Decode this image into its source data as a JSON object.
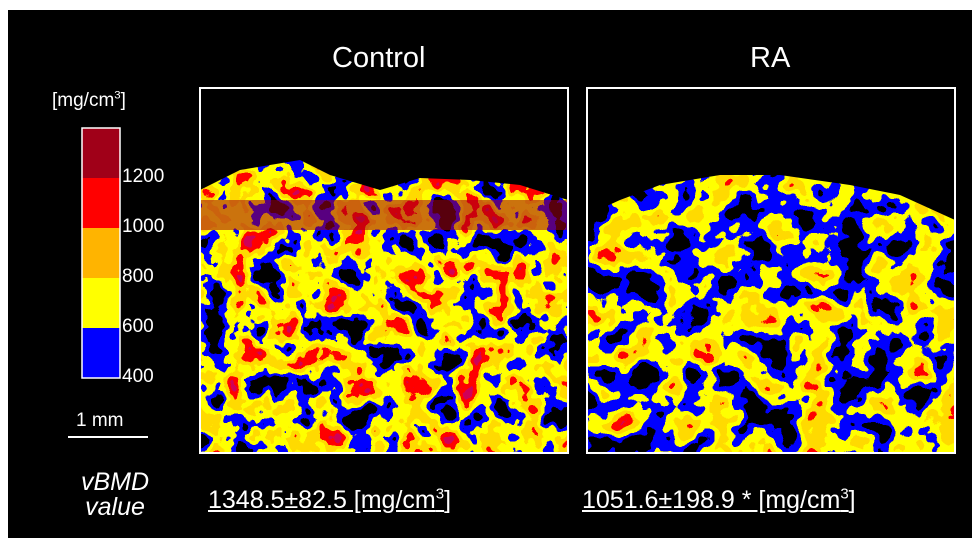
{
  "header": {
    "panels": [
      "Control",
      "RA"
    ]
  },
  "colorbar": {
    "unit": {
      "open": "[mg/cm",
      "sup": "3",
      "close": "]"
    },
    "ticks": [
      1200,
      1000,
      800,
      600,
      400
    ],
    "colors": [
      "#a00018",
      "#ff0000",
      "#ffb400",
      "#ffff00",
      "#0000ff"
    ]
  },
  "scale_bar": "1 mm",
  "row_label": [
    "vBMD",
    "value"
  ],
  "values": [
    {
      "text": "1348.5±82.5 [mg/cm",
      "sup": "3",
      "close": "]"
    },
    {
      "text": "1051.6±198.9 * [mg/cm",
      "sup": "3",
      "close": "]"
    }
  ]
}
